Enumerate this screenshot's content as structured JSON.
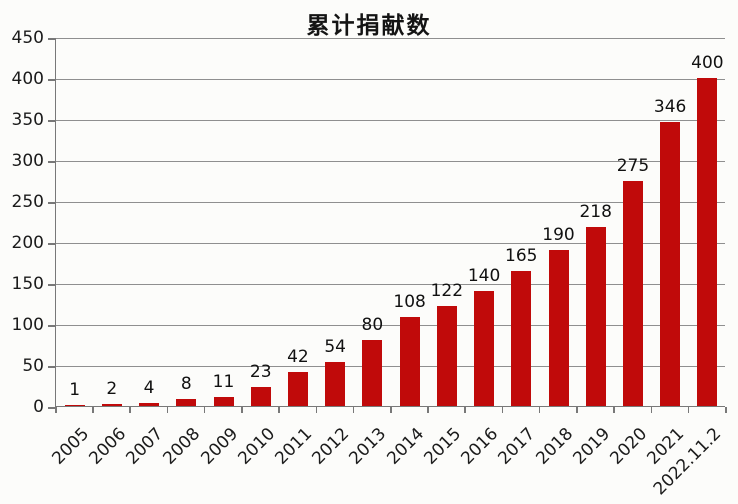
{
  "chart_data": {
    "type": "bar",
    "title": "累计捐献数",
    "categories": [
      "2005",
      "2006",
      "2007",
      "2008",
      "2009",
      "2010",
      "2011",
      "2012",
      "2013",
      "2014",
      "2015",
      "2016",
      "2017",
      "2018",
      "2019",
      "2020",
      "2021",
      "2022.11.2"
    ],
    "values": [
      1,
      2,
      4,
      8,
      11,
      23,
      42,
      54,
      80,
      108,
      122,
      140,
      165,
      190,
      218,
      275,
      346,
      400
    ],
    "xlabel": "",
    "ylabel": "",
    "ylim": [
      0,
      450
    ],
    "ytick_step": 50,
    "yticks": [
      0,
      50,
      100,
      150,
      200,
      250,
      300,
      350,
      400,
      450
    ],
    "grid": true,
    "legend": "none",
    "bar_color": "#c00a0a",
    "gridline_color": "#8f8f8f",
    "axis_color": "#787878",
    "text_color": "#1b1b1b",
    "background_color": "#fcfcfa"
  }
}
